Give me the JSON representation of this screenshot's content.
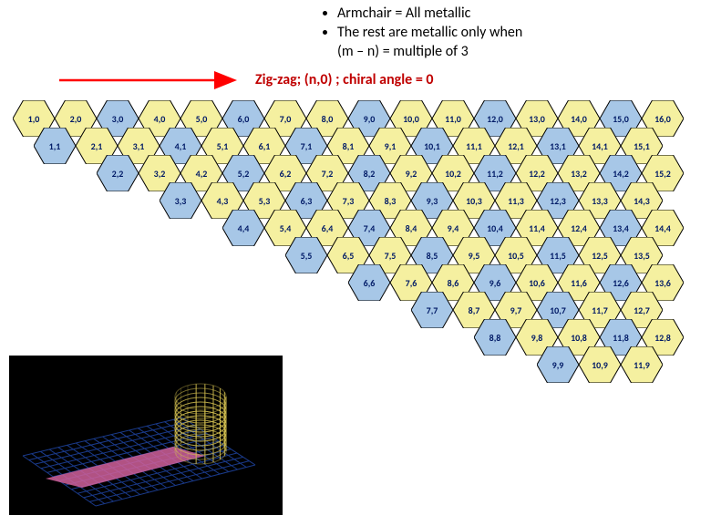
{
  "bullets": {
    "item1": "Armchair = All metallic",
    "item2": "The rest are metallic only when",
    "item3": "(m – n) = multiple of 3"
  },
  "title": "Zig-zag; (n,0) ; chiral angle = 0",
  "colors": {
    "yellow": "#f5f0a0",
    "blue": "#a7c7e7",
    "stroke": "#000000",
    "text": "#001a66",
    "arrow": "#ff0000",
    "titleColor": "#c00000"
  },
  "layout": {
    "hexWidth": 46,
    "hexHeight": 40,
    "rowVOffset": 30,
    "rowHOffset": 23,
    "startX": 14,
    "startY": 0
  },
  "rows": [
    {
      "m": 0,
      "start": 1,
      "end": 16,
      "blue": [
        3,
        6,
        9,
        12,
        15
      ]
    },
    {
      "m": 1,
      "start": 1,
      "end": 15,
      "blue": [
        1,
        4,
        7,
        10,
        13
      ]
    },
    {
      "m": 2,
      "start": 2,
      "end": 15,
      "blue": [
        2,
        5,
        8,
        11,
        14
      ]
    },
    {
      "m": 3,
      "start": 3,
      "end": 14,
      "blue": [
        3,
        6,
        9,
        12
      ]
    },
    {
      "m": 4,
      "start": 4,
      "end": 14,
      "blue": [
        4,
        7,
        10,
        13
      ]
    },
    {
      "m": 5,
      "start": 5,
      "end": 13,
      "blue": [
        5,
        8,
        11
      ]
    },
    {
      "m": 6,
      "start": 6,
      "end": 13,
      "blue": [
        6,
        9,
        12
      ]
    },
    {
      "m": 7,
      "start": 7,
      "end": 12,
      "blue": [
        7,
        10
      ]
    },
    {
      "m": 8,
      "start": 8,
      "end": 12,
      "blue": [
        8,
        11
      ]
    },
    {
      "m": 9,
      "start": 9,
      "end": 11,
      "blue": [
        9
      ]
    }
  ],
  "nanoImage": {
    "bg": "#000000",
    "sheetColor": "#1a3a8a",
    "pathColor": "#d0609a",
    "tubeColor": "#d4c050"
  }
}
